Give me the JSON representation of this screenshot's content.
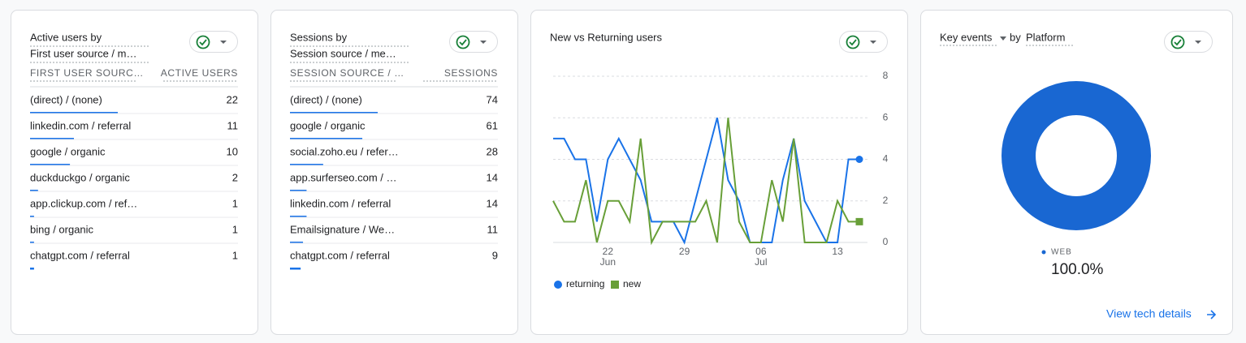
{
  "active_users": {
    "title": "Active users by",
    "subtitle": "First user source / m…",
    "columns": [
      "FIRST USER SOURC…",
      "ACTIVE USERS"
    ],
    "rows": [
      [
        "(direct) / (none)",
        22
      ],
      [
        "linkedin.com / referral",
        11
      ],
      [
        "google / organic",
        10
      ],
      [
        "duckduckgo / organic",
        2
      ],
      [
        "app.clickup.com / ref…",
        1
      ],
      [
        "bing / organic",
        1
      ],
      [
        "chatgpt.com / referral",
        1
      ]
    ]
  },
  "sessions": {
    "title": "Sessions by",
    "subtitle": "Session source / me…",
    "columns": [
      "SESSION SOURCE / …",
      "SESSIONS"
    ],
    "rows": [
      [
        "(direct) / (none)",
        74
      ],
      [
        "google / organic",
        61
      ],
      [
        "social.zoho.eu / refer…",
        28
      ],
      [
        "app.surferseo.com / …",
        14
      ],
      [
        "linkedin.com / referral",
        14
      ],
      [
        "Emailsignature / We…",
        11
      ],
      [
        "chatgpt.com / referral",
        9
      ]
    ]
  },
  "chart_data": [
    {
      "type": "line",
      "title": "New vs Returning users",
      "categories": [
        null,
        null,
        null,
        null,
        null,
        "22",
        null,
        null,
        null,
        null,
        null,
        null,
        "29",
        null,
        null,
        null,
        null,
        null,
        null,
        "06",
        null,
        null,
        null,
        null,
        null,
        null,
        "13",
        null,
        null
      ],
      "category_sublabels": [
        null,
        null,
        null,
        null,
        null,
        "Jun",
        null,
        null,
        null,
        null,
        null,
        null,
        null,
        null,
        null,
        null,
        null,
        null,
        null,
        "Jul",
        null,
        null,
        null,
        null,
        null,
        null,
        null,
        null,
        null
      ],
      "series": [
        {
          "name": "returning",
          "color": "#1a73e8",
          "values": [
            5,
            5,
            4,
            4,
            1,
            4,
            5,
            4,
            3,
            1,
            1,
            1,
            0,
            2,
            4,
            6,
            3,
            2,
            0,
            0,
            0,
            3,
            5,
            2,
            1,
            0,
            0,
            4,
            4
          ]
        },
        {
          "name": "new",
          "color": "#689f38",
          "values": [
            2,
            1,
            1,
            3,
            0,
            2,
            2,
            1,
            5,
            0,
            1,
            1,
            1,
            1,
            2,
            0,
            6,
            1,
            0,
            0,
            3,
            1,
            5,
            0,
            0,
            0,
            2,
            1,
            1
          ]
        }
      ],
      "ylim": [
        0,
        8
      ],
      "yticks": [
        0,
        2,
        4,
        6,
        8
      ],
      "grid": true,
      "legend": "bottom"
    },
    {
      "type": "pie",
      "title": "Key events",
      "title_connector": "by",
      "title_dimension": "Platform",
      "categories": [
        "WEB"
      ],
      "values": [
        100
      ],
      "value_labels": [
        "100.0%"
      ],
      "color": "#1967d2",
      "donut": true
    }
  ],
  "link": "View tech details"
}
